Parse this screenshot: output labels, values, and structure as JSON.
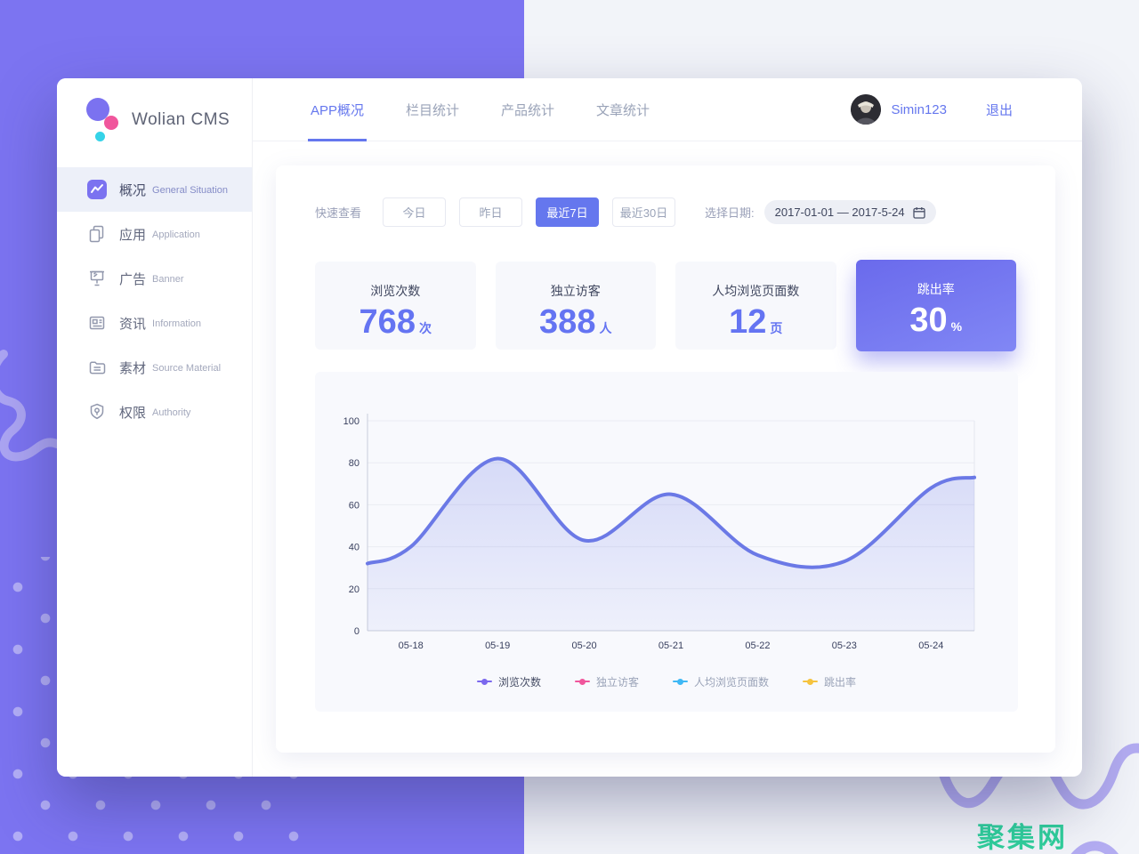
{
  "brand": {
    "name": "Wolian CMS"
  },
  "nav": {
    "tabs": [
      {
        "label": "APP概况",
        "active": true
      },
      {
        "label": "栏目统计",
        "active": false
      },
      {
        "label": "产品统计",
        "active": false
      },
      {
        "label": "文章统计",
        "active": false
      }
    ],
    "user": {
      "name": "Simin123",
      "logout_label": "退出"
    }
  },
  "sidebar": {
    "items": [
      {
        "zh": "概况",
        "en": "General Situation",
        "icon": "trend-chart",
        "active": true
      },
      {
        "zh": "应用",
        "en": "Application",
        "icon": "pages",
        "active": false
      },
      {
        "zh": "广告",
        "en": "Banner",
        "icon": "billboard",
        "active": false
      },
      {
        "zh": "资讯",
        "en": "Information",
        "icon": "newspaper",
        "active": false
      },
      {
        "zh": "素材",
        "en": "Source Material",
        "icon": "folder",
        "active": false
      },
      {
        "zh": "权限",
        "en": "Authority",
        "icon": "shield-key",
        "active": false
      }
    ]
  },
  "filters": {
    "quick_label": "快速查看",
    "buttons": [
      {
        "label": "今日",
        "active": false
      },
      {
        "label": "昨日",
        "active": false
      },
      {
        "label": "最近7日",
        "active": true
      },
      {
        "label": "最近30日",
        "active": false
      }
    ],
    "date_label": "选择日期:",
    "date_range": "2017-01-01 — 2017-5-24"
  },
  "stats": [
    {
      "title": "浏览次数",
      "value": "768",
      "unit": "次",
      "highlight": false
    },
    {
      "title": "独立访客",
      "value": "388",
      "unit": "人",
      "highlight": false
    },
    {
      "title": "人均浏览页面数",
      "value": "12",
      "unit": "页",
      "highlight": false
    },
    {
      "title": "跳出率",
      "value": "30",
      "unit": "%",
      "highlight": true
    }
  ],
  "chart_data": {
    "type": "line",
    "smooth": true,
    "x": [
      "05-18",
      "05-19",
      "05-20",
      "05-21",
      "05-22",
      "05-23",
      "05-24"
    ],
    "series": [
      {
        "name": "浏览次数",
        "color": "#7b68ee",
        "visible": true,
        "values": [
          40,
          82,
          43,
          65,
          36,
          33,
          68
        ],
        "edge_start": 32,
        "edge_end": 73
      },
      {
        "name": "独立访客",
        "color": "#f0569c",
        "visible": false,
        "values": null
      },
      {
        "name": "人均浏览页面数",
        "color": "#3fb8f5",
        "visible": false,
        "values": null
      },
      {
        "name": "跳出率",
        "color": "#f5c33f",
        "visible": false,
        "values": null
      }
    ],
    "ylim": [
      0,
      100
    ],
    "yticks": [
      0,
      20,
      40,
      60,
      80,
      100
    ],
    "grid": true,
    "legend_position": "bottom",
    "line_color": "#6b79e6",
    "area_fill": "rgba(107,121,230,0.18)"
  },
  "watermark": {
    "text": "聚集网",
    "color": "#2fcf9b"
  },
  "colors": {
    "accent": "#6577ee",
    "background_purple": "#7c74f1",
    "background_light": "#f2f4f9",
    "card_highlight_gradient": [
      "#6a6aec",
      "#8187f5"
    ]
  }
}
